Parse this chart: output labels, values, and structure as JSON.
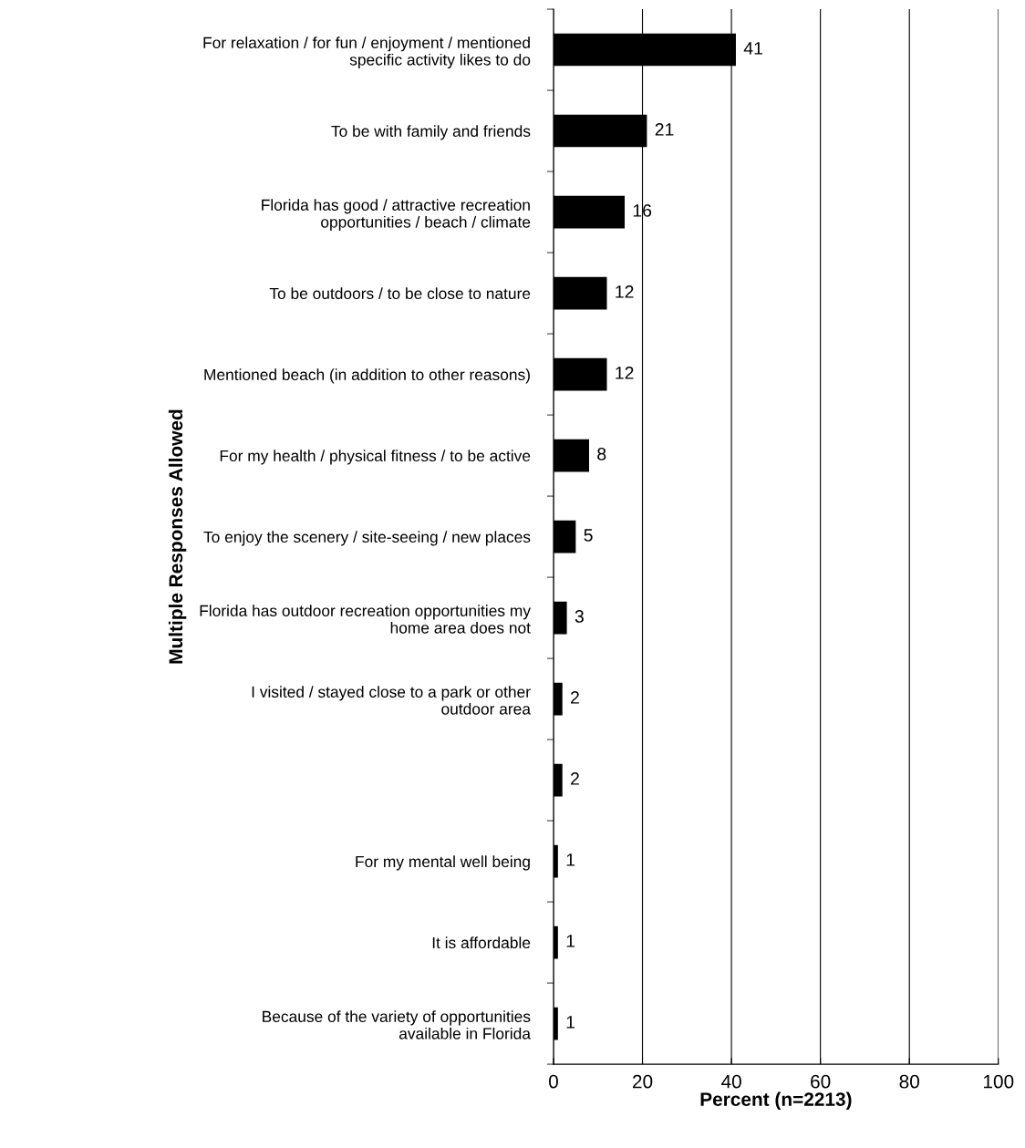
{
  "chart_data": {
    "type": "bar",
    "orientation": "horizontal",
    "xlabel": "Percent (n=2213)",
    "ylabel": "Multiple Responses Allowed",
    "categories": [
      "For relaxation / for fun / enjoyment / mentioned\nspecific activity likes to do",
      "To be with family and friends",
      "Florida has good / attractive recreation\nopportunities / beach / climate",
      "To be outdoors / to be close to nature",
      "Mentioned beach (in addition to other reasons)",
      "For my health / physical fitness / to be active",
      "To enjoy the scenery / site-seeing / new places",
      "Florida has outdoor recreation opportunities my\nhome area does not",
      "I visited / stayed close to a park or other\noutdoor area",
      null,
      "For my mental well being",
      "It is affordable",
      "Because of the variety of opportunities\navailable in Florida"
    ],
    "values": [
      41,
      21,
      16,
      12,
      12,
      8,
      5,
      3,
      2,
      2,
      1,
      1,
      1
    ],
    "color": "#000000",
    "data_labels": true,
    "xlim": [
      0,
      100
    ],
    "xticks": [
      0,
      20,
      40,
      60,
      80,
      100
    ],
    "grid": "x",
    "legend": false
  }
}
